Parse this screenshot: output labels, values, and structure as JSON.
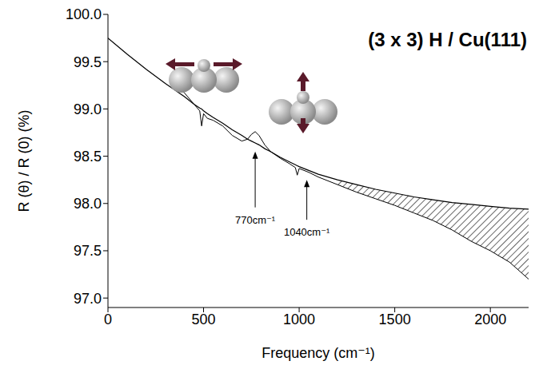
{
  "chart_data": {
    "type": "line",
    "title": "(3 x 3) H / Cu(111)",
    "x_label": "Frequency (cm⁻¹)",
    "y_label": "R (θ) / R (0) (%)",
    "x": [
      0,
      100,
      200,
      300,
      350,
      400,
      450,
      480,
      490,
      500,
      520,
      550,
      600,
      650,
      700,
      730,
      750,
      770,
      790,
      820,
      850,
      900,
      950,
      980,
      990,
      1000,
      1050,
      1100,
      1200,
      1300,
      1400,
      1500,
      1600,
      1700,
      1800,
      1900,
      2000,
      2100,
      2200
    ],
    "series": [
      {
        "color": "#000000",
        "line_style": "solid",
        "values": [
          99.75,
          99.58,
          99.42,
          99.27,
          99.2,
          99.13,
          99.05,
          99.01,
          99.0,
          98.98,
          98.95,
          98.91,
          98.85,
          98.78,
          98.72,
          98.68,
          98.66,
          98.64,
          98.62,
          98.58,
          98.55,
          98.49,
          98.44,
          98.41,
          98.4,
          98.39,
          98.35,
          98.31,
          98.25,
          98.2,
          98.15,
          98.11,
          98.07,
          98.04,
          98.01,
          97.99,
          97.97,
          97.95,
          97.94
        ]
      },
      {
        "color": "#000000",
        "line_style": "solid",
        "values": [
          null,
          null,
          null,
          null,
          99.25,
          99.17,
          99.05,
          98.98,
          98.82,
          98.95,
          98.9,
          98.88,
          98.82,
          98.72,
          98.66,
          98.68,
          98.73,
          98.76,
          98.72,
          98.62,
          98.55,
          98.48,
          98.42,
          98.38,
          98.3,
          98.37,
          98.33,
          98.28,
          98.2,
          98.12,
          98.05,
          97.98,
          97.9,
          97.82,
          97.72,
          97.6,
          97.5,
          97.38,
          97.2
        ]
      }
    ],
    "xlim": [
      0,
      2200
    ],
    "ylim": [
      96.9,
      100.0
    ],
    "xticks": [
      0,
      500,
      1000,
      1500,
      2000
    ],
    "yticks": [
      {
        "value": 97,
        "label": "97.0"
      },
      {
        "value": 97.5,
        "label": "97.5"
      },
      {
        "value": 98,
        "label": "98.0"
      },
      {
        "value": 98.5,
        "label": "98.5"
      },
      {
        "value": 99,
        "label": "99.0"
      },
      {
        "value": 99.5,
        "label": "99.5"
      },
      {
        "value": 100,
        "label": "100.0"
      }
    ],
    "hatched_range": [
      1200,
      2200
    ],
    "annotations": [
      {
        "text": "770cm⁻¹",
        "x": 770,
        "y": 98.55
      },
      {
        "text": "1040cm⁻¹",
        "x": 1040,
        "y": 98.25
      }
    ],
    "grid": false
  }
}
